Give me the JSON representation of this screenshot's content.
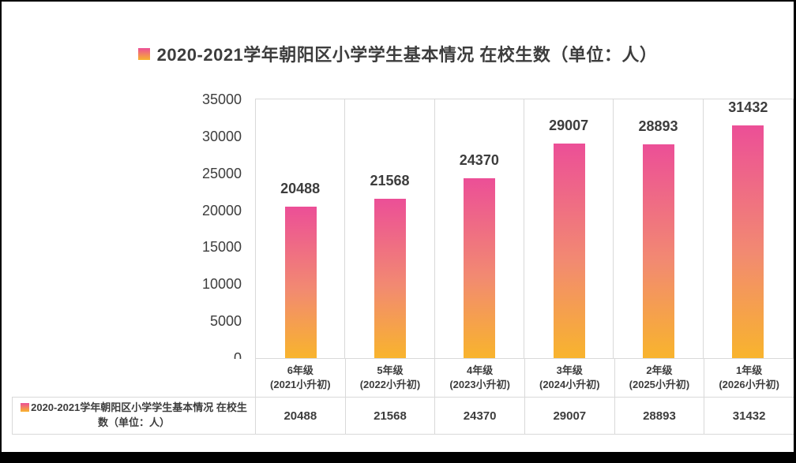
{
  "title": "2020-2021学年朝阳区小学学生基本情况 在校生数（单位：人）",
  "legend": {
    "label": "2020-2021学年朝阳区小学学生基本情况 在校生数（单位：人）"
  },
  "colors": {
    "bar_top": "#ec4f97",
    "bar_mid": "#f28a71",
    "bar_bottom": "#f8b42d",
    "grid_border": "#d9d9d9",
    "text": "#3d3d3d",
    "frame": "#000000",
    "background": "#ffffff"
  },
  "chart_data": {
    "type": "bar",
    "title": "2020-2021学年朝阳区小学学生基本情况 在校生数（单位：人）",
    "series": [
      {
        "name": "2020-2021学年朝阳区小学学生基本情况 在校生数（单位：人）",
        "values": [
          20488,
          21568,
          24370,
          29007,
          28893,
          31432
        ]
      }
    ],
    "categories": [
      "6年级\n(2021小升初)",
      "5年级\n(2022小升初)",
      "4年级\n(2023小升初)",
      "3年级\n(2024小升初)",
      "2年级\n(2025小升初)",
      "1年级\n(2026小升初)"
    ],
    "data_labels_shown": true,
    "data_table_shown": true,
    "xlabel": "",
    "ylabel": "",
    "ylim": [
      0,
      35000
    ],
    "ytick_step": 5000,
    "yticks": [
      "0",
      "5000",
      "10000",
      "15000",
      "20000",
      "25000",
      "30000",
      "35000"
    ],
    "grid": "vertical-column-separators-only",
    "legend_position": "top",
    "bar_gradient": [
      "#ec4f97",
      "#f8b42d"
    ]
  }
}
